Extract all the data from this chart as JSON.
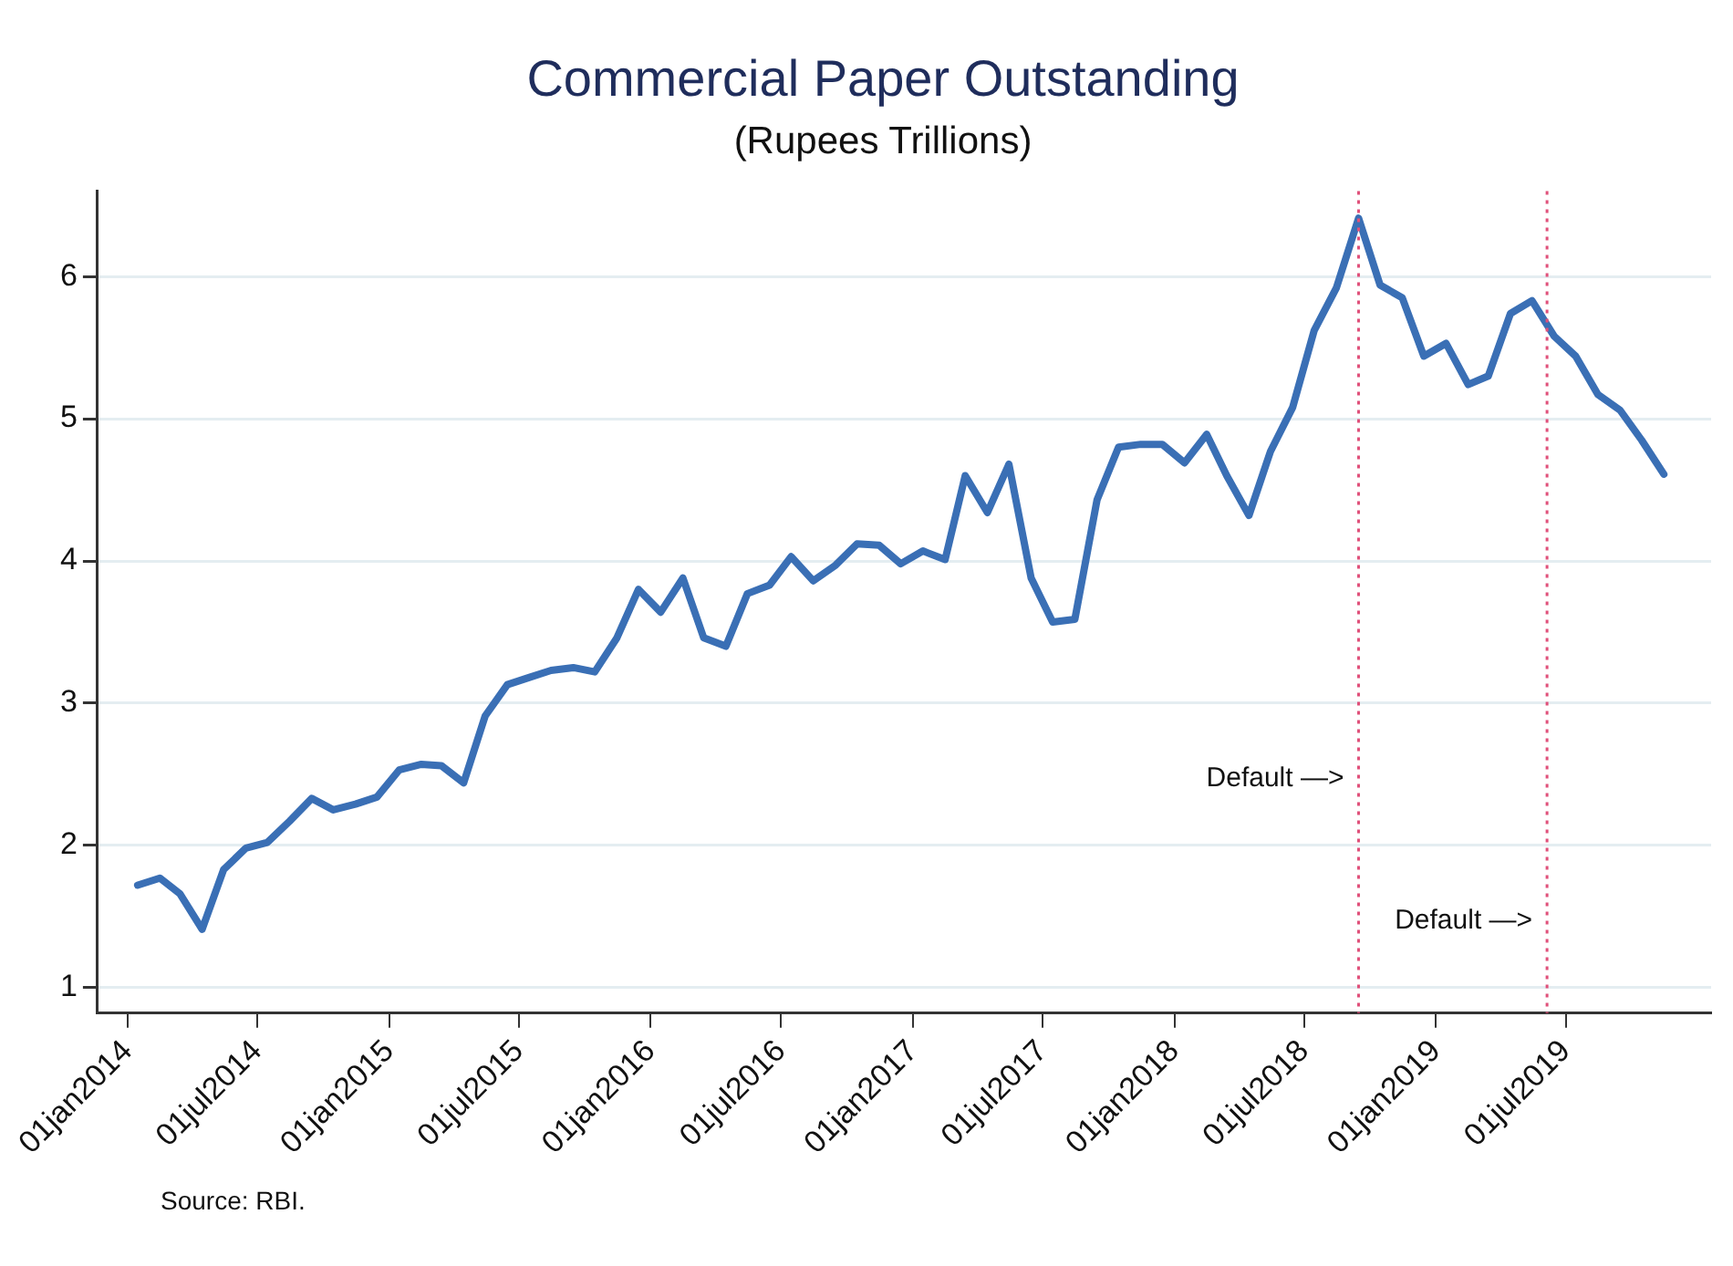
{
  "chart_data": {
    "type": "line",
    "title": "Commercial Paper Outstanding",
    "subtitle": "(Rupees Trillions)",
    "x": [
      "2014-01-15",
      "2014-02-15",
      "2014-03-15",
      "2014-04-15",
      "2014-05-15",
      "2014-06-15",
      "2014-07-15",
      "2014-08-15",
      "2014-09-15",
      "2014-10-15",
      "2014-11-15",
      "2014-12-15",
      "2015-01-15",
      "2015-02-15",
      "2015-03-15",
      "2015-04-15",
      "2015-05-15",
      "2015-06-15",
      "2015-07-15",
      "2015-08-15",
      "2015-09-15",
      "2015-10-15",
      "2015-11-15",
      "2015-12-15",
      "2016-01-15",
      "2016-02-15",
      "2016-03-15",
      "2016-04-15",
      "2016-05-15",
      "2016-06-15",
      "2016-07-15",
      "2016-08-15",
      "2016-09-15",
      "2016-10-15",
      "2016-11-15",
      "2016-12-15",
      "2017-01-15",
      "2017-02-15",
      "2017-03-15",
      "2017-04-15",
      "2017-05-15",
      "2017-06-15",
      "2017-07-15",
      "2017-08-15",
      "2017-09-15",
      "2017-10-15",
      "2017-11-15",
      "2017-12-15",
      "2018-01-15",
      "2018-02-15",
      "2018-03-15",
      "2018-04-15",
      "2018-05-15",
      "2018-06-15",
      "2018-07-15",
      "2018-08-15",
      "2018-09-15",
      "2018-10-15",
      "2018-11-15",
      "2018-12-15",
      "2019-01-15",
      "2019-02-15",
      "2019-03-15",
      "2019-04-15",
      "2019-05-15",
      "2019-06-15",
      "2019-07-15",
      "2019-08-15",
      "2019-09-15",
      "2019-10-15",
      "2019-11-15"
    ],
    "series": [
      {
        "color": "#3a6fb5",
        "values": [
          1.72,
          1.77,
          1.66,
          1.41,
          1.83,
          1.98,
          2.02,
          2.17,
          2.33,
          2.25,
          2.29,
          2.34,
          2.53,
          2.57,
          2.56,
          2.44,
          2.91,
          3.13,
          3.18,
          3.23,
          3.25,
          3.22,
          3.46,
          3.8,
          3.64,
          3.88,
          3.46,
          3.4,
          3.77,
          3.83,
          4.03,
          3.86,
          3.97,
          4.12,
          4.11,
          3.98,
          4.07,
          4.01,
          4.6,
          4.34,
          4.68,
          3.88,
          3.57,
          3.59,
          4.43,
          4.8,
          4.82,
          4.82,
          4.69,
          4.89,
          4.6,
          4.32,
          4.77,
          5.08,
          5.62,
          5.92,
          6.41,
          5.94,
          5.85,
          5.44,
          5.53,
          5.24,
          5.3,
          5.74,
          5.83,
          5.58,
          5.44,
          5.17,
          5.06,
          4.85,
          4.61
        ]
      }
    ],
    "xlim": [
      "2013-11-20",
      "2020-01-20"
    ],
    "xticks": [
      {
        "value": "2014-01-01",
        "label": "01jan2014"
      },
      {
        "value": "2014-07-01",
        "label": "01jul2014"
      },
      {
        "value": "2015-01-01",
        "label": "01jan2015"
      },
      {
        "value": "2015-07-01",
        "label": "01jul2015"
      },
      {
        "value": "2016-01-01",
        "label": "01jan2016"
      },
      {
        "value": "2016-07-01",
        "label": "01jul2016"
      },
      {
        "value": "2017-01-01",
        "label": "01jan2017"
      },
      {
        "value": "2017-07-01",
        "label": "01jul2017"
      },
      {
        "value": "2018-01-01",
        "label": "01jan2018"
      },
      {
        "value": "2018-07-01",
        "label": "01jul2018"
      },
      {
        "value": "2019-01-01",
        "label": "01jan2019"
      },
      {
        "value": "2019-07-01",
        "label": "01jul2019"
      }
    ],
    "ylim": [
      0.82,
      6.6
    ],
    "yticks": [
      1,
      2,
      3,
      4,
      5,
      6
    ],
    "grid": "y",
    "legend": false,
    "marker": "none",
    "line_style": "solid",
    "ref_lines": [
      {
        "axis": "x",
        "value": "2018-09-15",
        "color": "#e0507a",
        "line_style": "dotted"
      },
      {
        "axis": "x",
        "value": "2019-06-05",
        "color": "#e0507a",
        "line_style": "dotted"
      }
    ],
    "annotations": [
      {
        "text": "Default —>",
        "x": "2018-09-15",
        "y": 2.47
      },
      {
        "text": "Default —>",
        "x": "2019-06-05",
        "y": 1.47
      },
      "Source: RBI."
    ]
  }
}
